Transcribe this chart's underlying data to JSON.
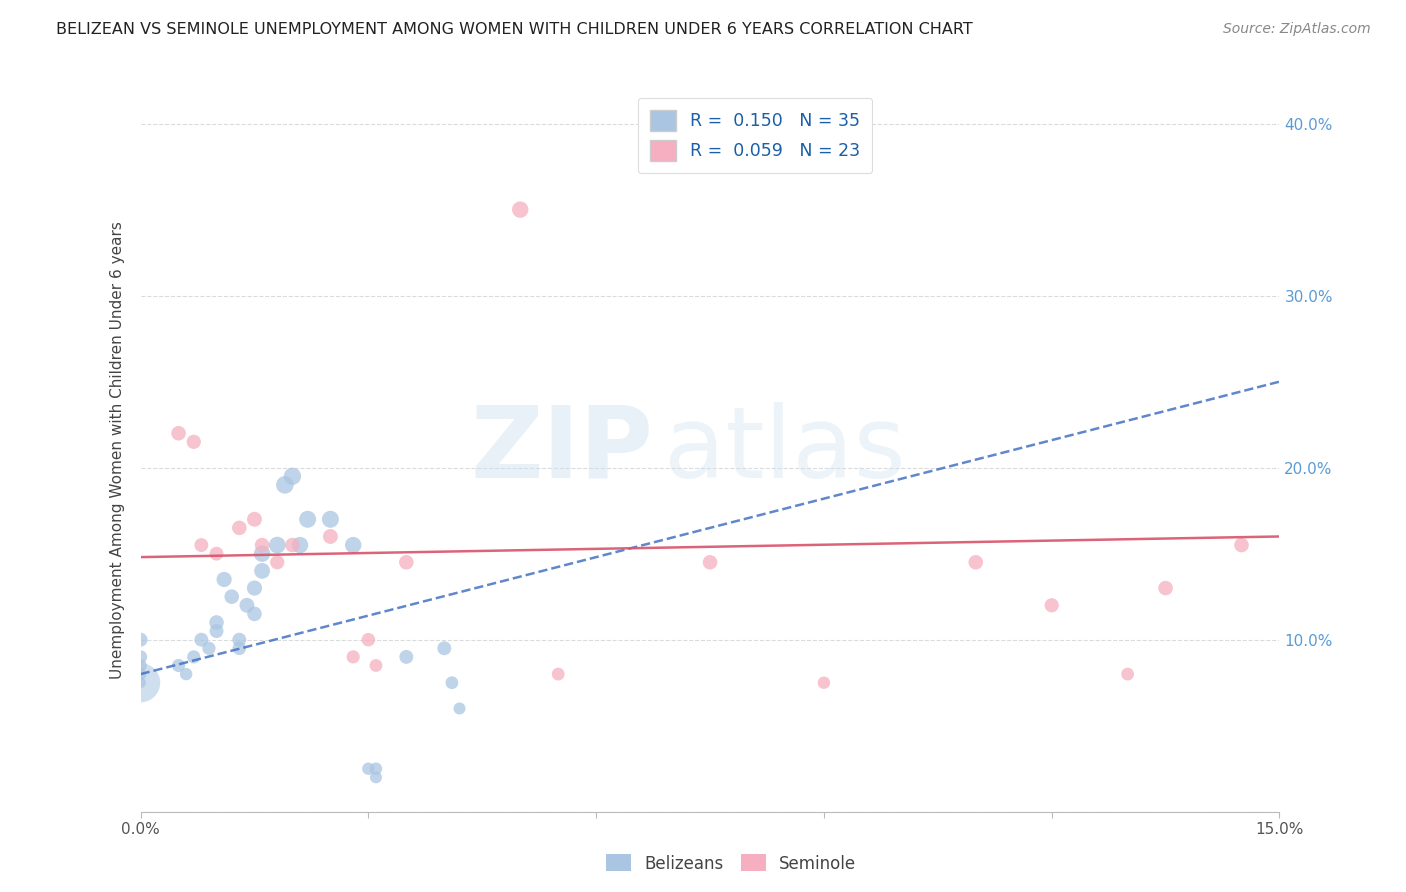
{
  "title": "BELIZEAN VS SEMINOLE UNEMPLOYMENT AMONG WOMEN WITH CHILDREN UNDER 6 YEARS CORRELATION CHART",
  "source": "Source: ZipAtlas.com",
  "ylabel": "Unemployment Among Women with Children Under 6 years",
  "xlim": [
    0,
    0.15
  ],
  "ylim": [
    0,
    0.42
  ],
  "legend_r_belizean": "0.150",
  "legend_n_belizean": "35",
  "legend_r_seminole": "0.059",
  "legend_n_seminole": "23",
  "belizean_color": "#aac5e2",
  "seminole_color": "#f5afc0",
  "belizean_line_color": "#4472c4",
  "seminole_line_color": "#d9536a",
  "watermark_zip": "ZIP",
  "watermark_atlas": "atlas",
  "belizean_x": [
    0.0,
    0.0,
    0.0,
    0.0,
    0.0,
    0.005,
    0.006,
    0.007,
    0.008,
    0.009,
    0.01,
    0.01,
    0.011,
    0.012,
    0.013,
    0.013,
    0.014,
    0.015,
    0.015,
    0.016,
    0.016,
    0.018,
    0.019,
    0.02,
    0.021,
    0.022,
    0.025,
    0.028,
    0.03,
    0.031,
    0.031,
    0.035,
    0.04,
    0.041,
    0.042
  ],
  "belizean_y": [
    0.075,
    0.08,
    0.085,
    0.09,
    0.1,
    0.085,
    0.08,
    0.09,
    0.1,
    0.095,
    0.11,
    0.105,
    0.135,
    0.125,
    0.1,
    0.095,
    0.12,
    0.115,
    0.13,
    0.15,
    0.14,
    0.155,
    0.19,
    0.195,
    0.155,
    0.17,
    0.17,
    0.155,
    0.025,
    0.02,
    0.025,
    0.09,
    0.095,
    0.075,
    0.06
  ],
  "belizean_sizes": [
    60,
    70,
    80,
    90,
    100,
    90,
    80,
    90,
    100,
    90,
    110,
    100,
    120,
    110,
    100,
    95,
    115,
    110,
    120,
    140,
    130,
    145,
    160,
    155,
    140,
    150,
    150,
    140,
    80,
    75,
    80,
    100,
    100,
    85,
    75
  ],
  "belizean_large_x": [
    0.0
  ],
  "belizean_large_y": [
    0.075
  ],
  "belizean_large_size": [
    800
  ],
  "seminole_x": [
    0.005,
    0.007,
    0.008,
    0.01,
    0.013,
    0.015,
    0.016,
    0.018,
    0.02,
    0.025,
    0.028,
    0.03,
    0.031,
    0.035,
    0.05,
    0.055,
    0.075,
    0.09,
    0.11,
    0.12,
    0.13,
    0.135,
    0.145
  ],
  "seminole_y": [
    0.22,
    0.215,
    0.155,
    0.15,
    0.165,
    0.17,
    0.155,
    0.145,
    0.155,
    0.16,
    0.09,
    0.1,
    0.085,
    0.145,
    0.35,
    0.08,
    0.145,
    0.075,
    0.145,
    0.12,
    0.08,
    0.13,
    0.155
  ],
  "seminole_sizes": [
    110,
    105,
    100,
    100,
    110,
    115,
    110,
    105,
    110,
    115,
    90,
    95,
    85,
    110,
    140,
    85,
    110,
    80,
    110,
    105,
    85,
    110,
    110
  ],
  "belizean_trendline": [
    0.08,
    0.25
  ],
  "seminole_trendline": [
    0.148,
    0.16
  ],
  "background_color": "#ffffff",
  "grid_color": "#cccccc",
  "grid_alpha": 0.7
}
